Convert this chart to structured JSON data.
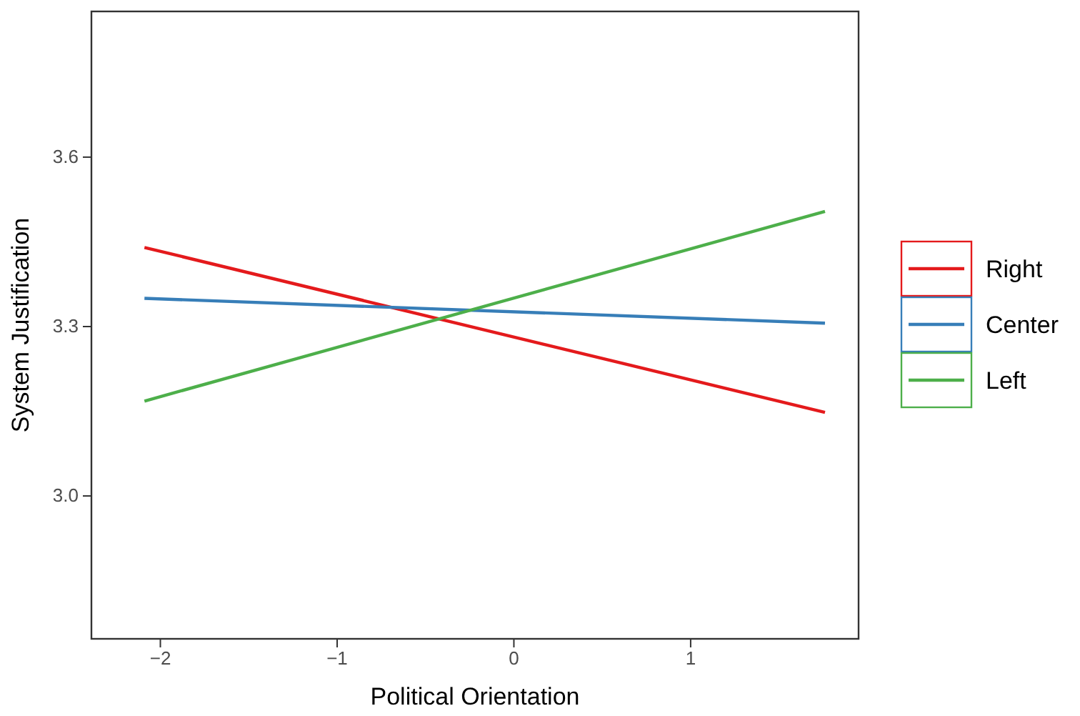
{
  "chart_data": {
    "type": "line",
    "xlabel": "Political Orientation",
    "ylabel": "System Justification",
    "x": [
      -2.09,
      1.76
    ],
    "series": [
      {
        "name": "Right",
        "color": "#e41a1c",
        "values": [
          3.44,
          3.148
        ]
      },
      {
        "name": "Center",
        "color": "#377eb8",
        "values": [
          3.35,
          3.306
        ]
      },
      {
        "name": "Left",
        "color": "#4daf4a",
        "values": [
          3.168,
          3.504
        ]
      }
    ],
    "xlim": [
      -2.39,
      1.95
    ],
    "xticks": [
      {
        "value": -2,
        "label": "−2"
      },
      {
        "value": -1,
        "label": "−1"
      },
      0,
      1
    ],
    "ylim": [
      2.747,
      3.858
    ],
    "yticks": [
      {
        "value": 3.0,
        "label": "3.0"
      },
      {
        "value": 3.3,
        "label": "3.3"
      },
      {
        "value": 3.6,
        "label": "3.6"
      }
    ],
    "grid": false,
    "legend": "right",
    "marker": "none",
    "line_style": "solid"
  }
}
